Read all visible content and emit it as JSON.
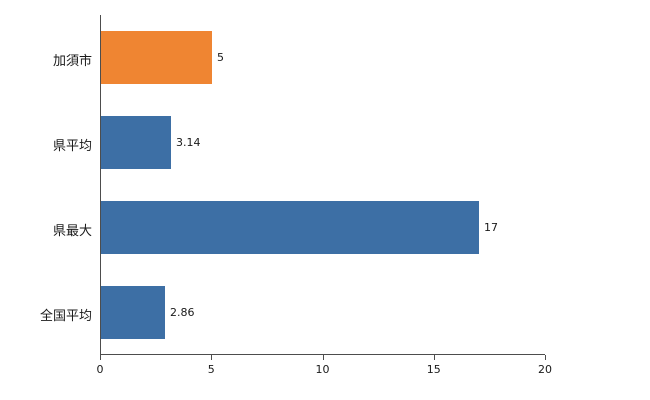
{
  "chart_data": {
    "type": "bar",
    "orientation": "horizontal",
    "title": "",
    "xlabel": "",
    "ylabel": "",
    "categories": [
      "加須市",
      "県平均",
      "県最大",
      "全国平均"
    ],
    "values": [
      5,
      3.14,
      17,
      2.86
    ],
    "value_labels": [
      "5",
      "3.14",
      "17",
      "2.86"
    ],
    "bar_colors": [
      "#ef8532",
      "#3d6fa5",
      "#3d6fa5",
      "#3d6fa5"
    ],
    "xlim": [
      0,
      20
    ],
    "xticks": [
      0,
      5,
      10,
      15,
      20
    ],
    "grid": false,
    "legend": false
  },
  "colors": {
    "background": "#ffffff",
    "axis": "#4d4d4d",
    "text": "#1a1a1a",
    "highlight_bar": "#ef8532",
    "default_bar": "#3d6fa5"
  }
}
